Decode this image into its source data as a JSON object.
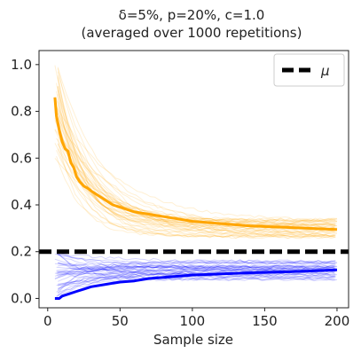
{
  "chart_data": {
    "type": "line",
    "title": [
      "δ=5%, p=20%, c=1.0",
      "(averaged over 1000 repetitions)"
    ],
    "xlabel": "Sample size",
    "ylabel": "",
    "xlim": [
      -6,
      208
    ],
    "ylim": [
      -0.04,
      1.06
    ],
    "xticks": [
      0,
      50,
      100,
      150,
      200
    ],
    "yticks": [
      0.0,
      0.2,
      0.4,
      0.6,
      0.8,
      1.0
    ],
    "grid": false,
    "legend": {
      "position": "top-right",
      "entries": [
        {
          "label": "μ",
          "style": "dashed",
          "color": "#000000"
        }
      ]
    },
    "reference_line": {
      "name": "μ",
      "y": 0.2,
      "color": "#000000",
      "style": "dashed"
    },
    "series": [
      {
        "role": "upper-mean",
        "color": "#ffa500",
        "x": [
          5,
          6,
          8,
          10,
          12,
          14,
          16,
          18,
          20,
          22,
          25,
          28,
          30,
          35,
          40,
          45,
          50,
          60,
          70,
          80,
          90,
          100,
          120,
          140,
          160,
          180,
          200
        ],
        "y": [
          0.86,
          0.78,
          0.72,
          0.67,
          0.64,
          0.63,
          0.58,
          0.56,
          0.52,
          0.5,
          0.48,
          0.47,
          0.46,
          0.44,
          0.42,
          0.4,
          0.39,
          0.37,
          0.36,
          0.35,
          0.34,
          0.33,
          0.32,
          0.31,
          0.305,
          0.3,
          0.295
        ]
      },
      {
        "role": "lower-mean",
        "color": "#0000ff",
        "x": [
          5,
          8,
          10,
          15,
          20,
          25,
          30,
          40,
          50,
          60,
          70,
          80,
          90,
          100,
          120,
          140,
          160,
          180,
          200
        ],
        "y": [
          0.0,
          0.0,
          0.01,
          0.02,
          0.03,
          0.04,
          0.05,
          0.06,
          0.07,
          0.075,
          0.085,
          0.09,
          0.095,
          0.1,
          0.105,
          0.11,
          0.113,
          0.117,
          0.122
        ]
      }
    ],
    "repetition_bands": [
      {
        "role": "upper-repetitions",
        "color": "#ffa500",
        "count": 40,
        "start_y": [
          0.6,
          1.0
        ],
        "end_y": [
          0.26,
          0.34
        ]
      },
      {
        "role": "lower-repetitions",
        "color": "#0000ff",
        "count": 40,
        "start_y": [
          0.0,
          0.2
        ],
        "end_y": [
          0.08,
          0.16
        ]
      }
    ]
  }
}
